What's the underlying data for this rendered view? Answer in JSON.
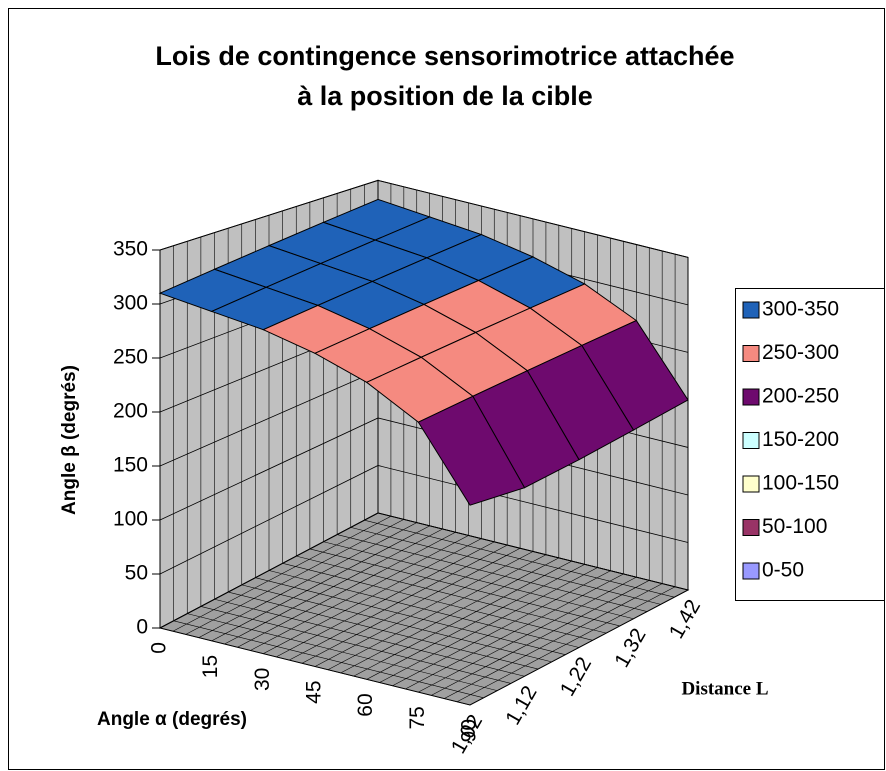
{
  "chart_data": {
    "type": "surface3d",
    "title": [
      "Lois de contingence sensorimotrice attachée",
      "à la position de la cible"
    ],
    "x_label": "Angle α (degrés)",
    "y_label": "Distance L",
    "z_label": "Angle β (degrés)",
    "x_categories": [
      "0",
      "15",
      "30",
      "45",
      "60",
      "75",
      "90"
    ],
    "y_categories": [
      "1,02",
      "1,12",
      "1,22",
      "1,32",
      "1,42"
    ],
    "values": [
      [
        310,
        315,
        320,
        325,
        330
      ],
      [
        305,
        310,
        315,
        320,
        325
      ],
      [
        300,
        305,
        310,
        315,
        320
      ],
      [
        290,
        295,
        300,
        305,
        310
      ],
      [
        275,
        280,
        285,
        290,
        295
      ],
      [
        250,
        255,
        260,
        265,
        270
      ],
      [
        185,
        180,
        185,
        192,
        200
      ]
    ],
    "zlim": [
      0,
      350
    ],
    "zticks": [
      0,
      50,
      100,
      150,
      200,
      250,
      300,
      350
    ],
    "grid": true,
    "legend": [
      {
        "name": "300-350",
        "color": "#1f62b8"
      },
      {
        "name": "250-300",
        "color": "#f58a80"
      },
      {
        "name": "200-250",
        "color": "#6e0a6e"
      },
      {
        "name": "150-200",
        "color": "#ccffff"
      },
      {
        "name": "100-150",
        "color": "#ffffcc"
      },
      {
        "name": "50-100",
        "color": "#993366"
      },
      {
        "name": "0-50",
        "color": "#9999ff"
      }
    ]
  }
}
